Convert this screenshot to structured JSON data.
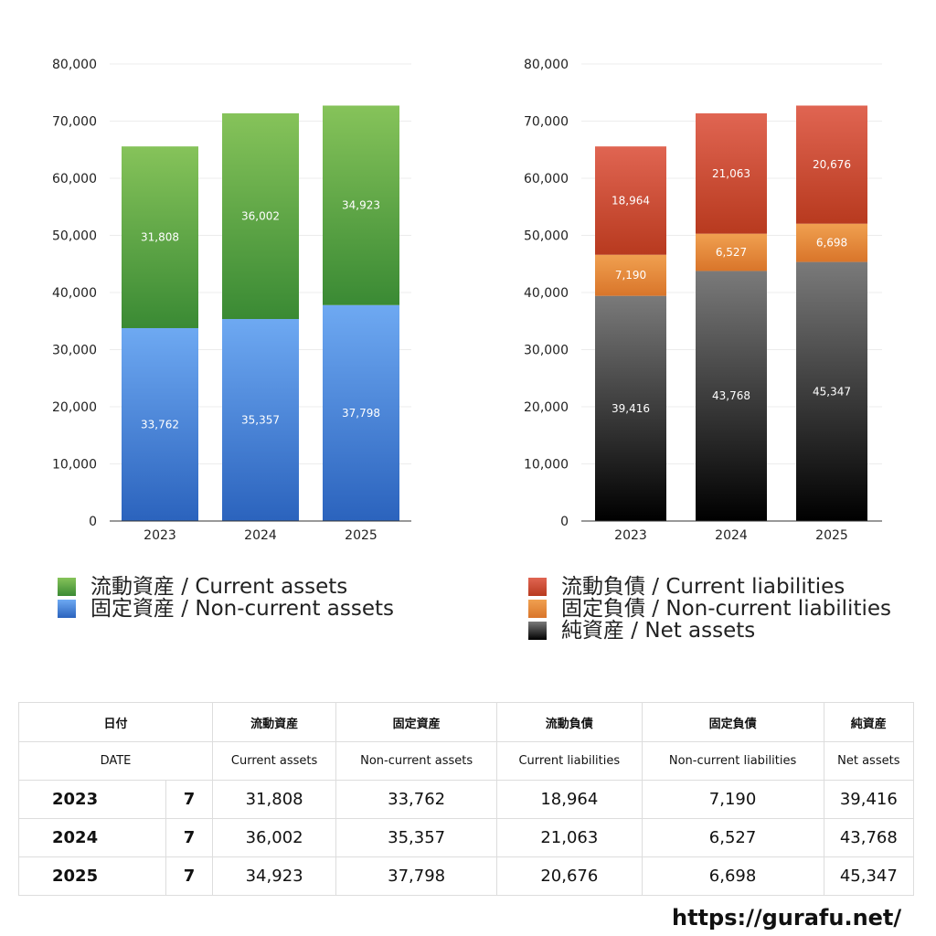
{
  "chart_data": [
    {
      "type": "bar",
      "stacked": true,
      "categories": [
        "2023",
        "2024",
        "2025"
      ],
      "series": [
        {
          "name": "固定資産 / Non-current assets",
          "values": [
            33762,
            35357,
            37798
          ],
          "labels": [
            "33,762",
            "35,357",
            "37,798"
          ],
          "color_top": "#6ea9f2",
          "color_bottom": "#2b63bd"
        },
        {
          "name": "流動資産 / Current assets",
          "values": [
            31808,
            36002,
            34923
          ],
          "labels": [
            "31,808",
            "36,002",
            "34,923"
          ],
          "color_top": "#86c35a",
          "color_bottom": "#3a8a34"
        }
      ],
      "ylim": [
        0,
        80000
      ],
      "yticks": [
        "0",
        "10,000",
        "20,000",
        "30,000",
        "40,000",
        "50,000",
        "60,000",
        "70,000",
        "80,000"
      ],
      "grid": true,
      "legend_order": [
        1,
        0
      ]
    },
    {
      "type": "bar",
      "stacked": true,
      "categories": [
        "2023",
        "2024",
        "2025"
      ],
      "series": [
        {
          "name": "純資産 / Net assets",
          "values": [
            39416,
            43768,
            45347
          ],
          "labels": [
            "39,416",
            "43,768",
            "45,347"
          ],
          "color_top": "#7a7a7a",
          "color_bottom": "#000000"
        },
        {
          "name": "固定負債 / Non-current liabilities",
          "values": [
            7190,
            6527,
            6698
          ],
          "labels": [
            "7,190",
            "6,527",
            "6,698"
          ],
          "color_top": "#f0a050",
          "color_bottom": "#d9752a"
        },
        {
          "name": "流動負債 / Current liabilities",
          "values": [
            18964,
            21063,
            20676
          ],
          "labels": [
            "18,964",
            "21,063",
            "20,676"
          ],
          "color_top": "#e06552",
          "color_bottom": "#b83a1f"
        }
      ],
      "ylim": [
        0,
        80000
      ],
      "yticks": [
        "0",
        "10,000",
        "20,000",
        "30,000",
        "40,000",
        "50,000",
        "60,000",
        "70,000",
        "80,000"
      ],
      "grid": true,
      "legend_order": [
        2,
        1,
        0
      ]
    }
  ],
  "table": {
    "header_jp": [
      "日付",
      "流動資産",
      "固定資産",
      "流動負債",
      "固定負債",
      "純資産"
    ],
    "header_en": [
      "DATE",
      "Current assets",
      "Non-current assets",
      "Current liabilities",
      "Non-current liabilities",
      "Net assets"
    ],
    "rows": [
      {
        "year": "2023",
        "month": "7",
        "values": [
          "31,808",
          "33,762",
          "18,964",
          "7,190",
          "39,416"
        ]
      },
      {
        "year": "2024",
        "month": "7",
        "values": [
          "36,002",
          "35,357",
          "21,063",
          "6,527",
          "43,768"
        ]
      },
      {
        "year": "2025",
        "month": "7",
        "values": [
          "34,923",
          "37,798",
          "20,676",
          "6,698",
          "45,347"
        ]
      }
    ]
  },
  "footer_url": "https://gurafu.net/"
}
